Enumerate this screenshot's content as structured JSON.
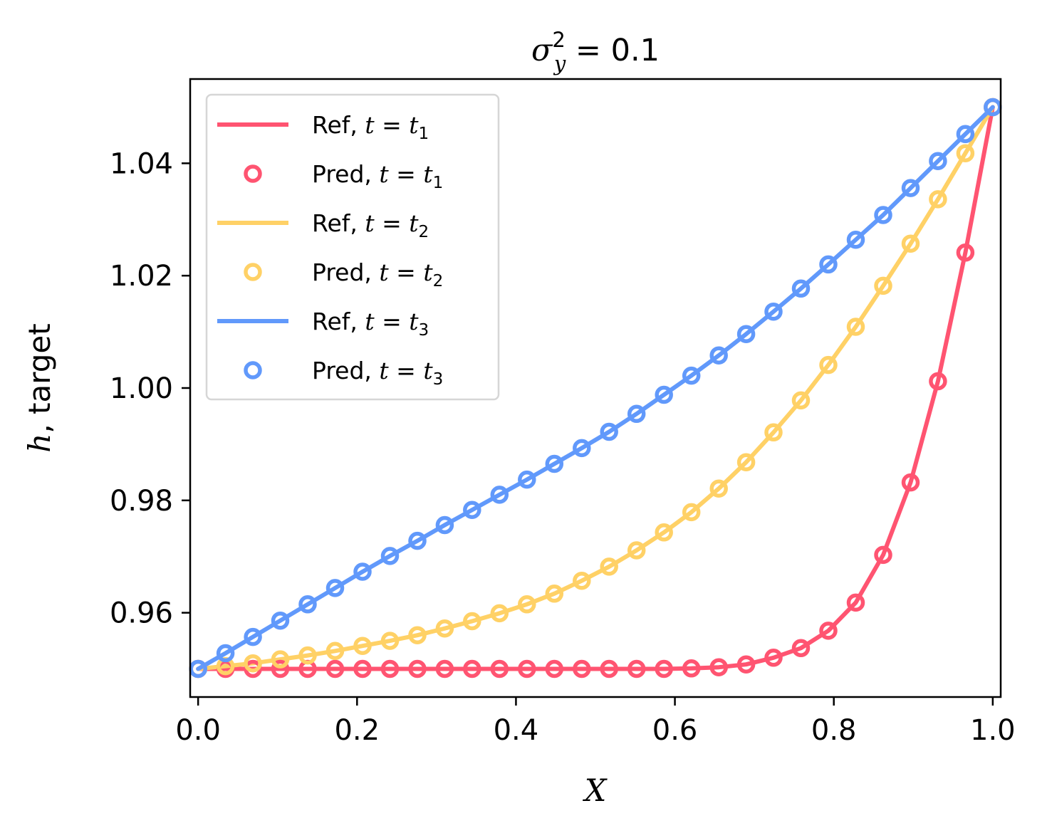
{
  "chart_data": {
    "type": "line",
    "title_parts": {
      "base": "σ",
      "sup": "2",
      "sub": "y",
      "rest": " = 0.1"
    },
    "xlabel": "X",
    "ylabel": {
      "var": "h",
      "rest": ", target"
    },
    "xlim": [
      -0.01,
      1.01
    ],
    "ylim": [
      0.945,
      1.055
    ],
    "xticks": [
      0.0,
      0.2,
      0.4,
      0.6,
      0.8,
      1.0
    ],
    "xtick_labels": [
      "0.0",
      "0.2",
      "0.4",
      "0.6",
      "0.8",
      "1.0"
    ],
    "yticks": [
      0.96,
      0.98,
      1.0,
      1.02,
      1.04
    ],
    "ytick_labels": [
      "0.96",
      "0.98",
      "1.00",
      "1.02",
      "1.04"
    ],
    "grid": false,
    "legend_position": "top-left",
    "x": [
      0.0,
      0.0345,
      0.069,
      0.1034,
      0.1379,
      0.1724,
      0.2069,
      0.2414,
      0.2759,
      0.3103,
      0.3448,
      0.3793,
      0.4138,
      0.4483,
      0.4828,
      0.5172,
      0.5517,
      0.5862,
      0.6207,
      0.6552,
      0.6897,
      0.7241,
      0.7586,
      0.7931,
      0.8276,
      0.8621,
      0.8966,
      0.931,
      0.9655,
      1.0
    ],
    "series": [
      {
        "key": "t1",
        "color": "#ff5471",
        "values": [
          0.95,
          0.95,
          0.95,
          0.95,
          0.95,
          0.95,
          0.95,
          0.95,
          0.95,
          0.95,
          0.95,
          0.95,
          0.95,
          0.95,
          0.95,
          0.95,
          0.95,
          0.95,
          0.9501,
          0.9503,
          0.9508,
          0.952,
          0.9537,
          0.9568,
          0.9618,
          0.9703,
          0.9832,
          1.0012,
          1.0241,
          1.05
        ]
      },
      {
        "key": "t2",
        "color": "#ffd166",
        "values": [
          0.95,
          0.9505,
          0.951,
          0.9517,
          0.9524,
          0.9532,
          0.9541,
          0.955,
          0.956,
          0.9572,
          0.9585,
          0.9599,
          0.9615,
          0.9634,
          0.9657,
          0.9682,
          0.9711,
          0.9743,
          0.9779,
          0.9821,
          0.9868,
          0.9921,
          0.9978,
          1.0041,
          1.0109,
          1.0182,
          1.0257,
          1.0336,
          1.0418,
          1.05
        ]
      },
      {
        "key": "t3",
        "color": "#6199fb",
        "values": [
          0.95,
          0.9528,
          0.9557,
          0.9586,
          0.9615,
          0.9644,
          0.9673,
          0.9701,
          0.9728,
          0.9756,
          0.9783,
          0.981,
          0.9837,
          0.9865,
          0.9893,
          0.9922,
          0.9954,
          0.9988,
          1.0022,
          1.0058,
          1.0096,
          1.0136,
          1.0177,
          1.022,
          1.0264,
          1.0308,
          1.0356,
          1.0404,
          1.0452,
          1.05
        ]
      }
    ],
    "legend": [
      {
        "series": "t1",
        "kind": "line",
        "label": "Ref, ",
        "sub": "1"
      },
      {
        "series": "t1",
        "kind": "marker",
        "label": "Pred, ",
        "sub": "1"
      },
      {
        "series": "t2",
        "kind": "line",
        "label": "Ref, ",
        "sub": "2"
      },
      {
        "series": "t2",
        "kind": "marker",
        "label": "Pred, ",
        "sub": "2"
      },
      {
        "series": "t3",
        "kind": "line",
        "label": "Ref, ",
        "sub": "3"
      },
      {
        "series": "t3",
        "kind": "marker",
        "label": "Pred, ",
        "sub": "3"
      }
    ]
  }
}
